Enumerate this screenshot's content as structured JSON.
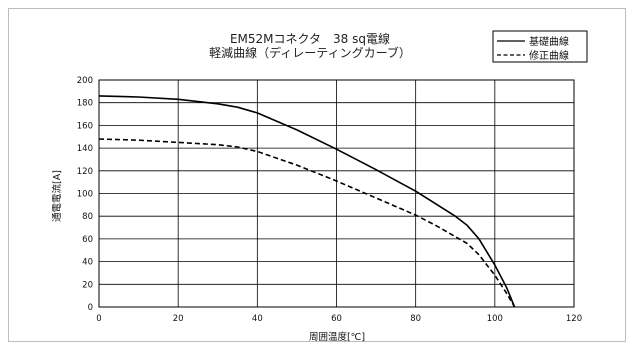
{
  "chart_data": {
    "type": "line",
    "title": "EM52Mコネクタ　38 sq電線",
    "subtitle": "軽減曲線（ディレーティングカーブ）",
    "xlabel": "周囲温度[℃]",
    "ylabel": "通電電流[A]",
    "xlim": [
      0,
      120
    ],
    "ylim": [
      0,
      200
    ],
    "xticks": [
      0,
      20,
      40,
      60,
      80,
      100,
      120
    ],
    "yticks": [
      0,
      20,
      40,
      60,
      80,
      100,
      120,
      140,
      160,
      180,
      200
    ],
    "grid": true,
    "legend_position": "top-right",
    "series": [
      {
        "name": "基礎曲線",
        "style": "solid",
        "color": "#000000",
        "x": [
          0,
          10,
          20,
          25,
          30,
          35,
          40,
          50,
          60,
          70,
          80,
          85,
          90,
          93,
          96,
          100,
          103,
          105
        ],
        "y": [
          186,
          185,
          183,
          181,
          179,
          176,
          171,
          156,
          139,
          121,
          102,
          91,
          80,
          72,
          60,
          37,
          17,
          0
        ]
      },
      {
        "name": "修正曲線",
        "style": "dashed",
        "color": "#000000",
        "x": [
          0,
          10,
          20,
          30,
          35,
          40,
          50,
          60,
          70,
          80,
          85,
          90,
          93,
          96,
          100,
          103,
          105
        ],
        "y": [
          148,
          147,
          145,
          143,
          141,
          137,
          125,
          111,
          96,
          81,
          72,
          62,
          56,
          46,
          28,
          12,
          0
        ]
      }
    ]
  }
}
